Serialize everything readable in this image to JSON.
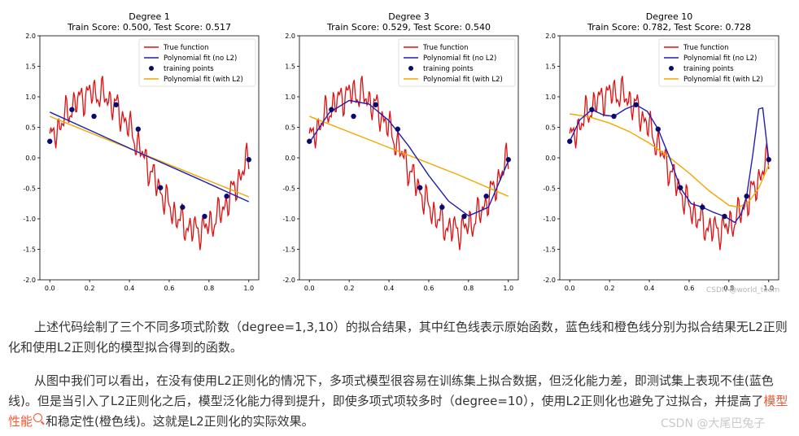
{
  "chart_data": [
    {
      "type": "line",
      "title": "Degree 1",
      "subtitle": "Train Score: 0.500, Test Score: 0.517",
      "xlim": [
        -0.05,
        1.05
      ],
      "ylim": [
        -2.0,
        2.0
      ],
      "xticks": [
        "0.0",
        "0.2",
        "0.4",
        "0.6",
        "0.8",
        "1.0"
      ],
      "yticks": [
        "-2.0",
        "-1.5",
        "-1.0",
        "-0.5",
        "0.0",
        "0.5",
        "1.0",
        "1.5",
        "2.0"
      ],
      "legend": [
        "True function",
        "Polynomial fit (no L2)",
        "training points",
        "Polynomial fit (with L2)"
      ],
      "legend_position": "top-right",
      "training_points": {
        "x": [
          0.0,
          0.111,
          0.222,
          0.333,
          0.444,
          0.556,
          0.667,
          0.778,
          0.889,
          1.0
        ],
        "y": [
          0.27,
          0.79,
          0.68,
          0.87,
          0.47,
          -0.49,
          -0.81,
          -0.96,
          -0.63,
          -0.03
        ]
      },
      "fit_no_l2": {
        "x": [
          0.0,
          0.25,
          0.5,
          0.75,
          1.0
        ],
        "y": [
          0.75,
          0.38,
          0.01,
          -0.35,
          -0.72
        ]
      },
      "fit_with_l2": {
        "x": [
          0.0,
          0.25,
          0.5,
          0.75,
          1.0
        ],
        "y": [
          0.68,
          0.35,
          0.02,
          -0.31,
          -0.64
        ]
      }
    },
    {
      "type": "line",
      "title": "Degree 3",
      "subtitle": "Train Score: 0.529, Test Score: 0.540",
      "xlim": [
        -0.05,
        1.05
      ],
      "ylim": [
        -2.0,
        2.0
      ],
      "xticks": [
        "0.0",
        "0.2",
        "0.4",
        "0.6",
        "0.8",
        "1.0"
      ],
      "yticks": [
        "-2.0",
        "-1.5",
        "-1.0",
        "-0.5",
        "0.0",
        "0.5",
        "1.0",
        "1.5",
        "2.0"
      ],
      "legend": [
        "True function",
        "Polynomial fit (no L2)",
        "training points",
        "Polynomial fit (with L2)"
      ],
      "legend_position": "top-right",
      "training_points": {
        "x": [
          0.0,
          0.111,
          0.222,
          0.333,
          0.444,
          0.556,
          0.667,
          0.778,
          0.889,
          1.0
        ],
        "y": [
          0.27,
          0.79,
          0.68,
          0.87,
          0.47,
          -0.49,
          -0.81,
          -0.96,
          -0.63,
          -0.03
        ]
      },
      "fit_no_l2": {
        "x": [
          0.0,
          0.1,
          0.2,
          0.3,
          0.4,
          0.5,
          0.6,
          0.7,
          0.8,
          0.9,
          1.0
        ],
        "y": [
          0.25,
          0.74,
          0.94,
          0.88,
          0.61,
          0.19,
          -0.29,
          -0.71,
          -0.95,
          -0.81,
          -0.05
        ]
      },
      "fit_with_l2": {
        "x": [
          0.0,
          0.25,
          0.5,
          0.75,
          1.0
        ],
        "y": [
          0.68,
          0.36,
          0.04,
          -0.28,
          -0.63
        ]
      }
    },
    {
      "type": "line",
      "title": "Degree 10",
      "subtitle": "Train Score: 0.782, Test Score: 0.728",
      "xlim": [
        -0.05,
        1.05
      ],
      "ylim": [
        -2.0,
        2.0
      ],
      "xticks": [
        "0.0",
        "0.2",
        "0.4",
        "0.6",
        "0.8",
        "1.0"
      ],
      "yticks": [
        "-2.0",
        "-1.5",
        "-1.0",
        "-0.5",
        "0.0",
        "0.5",
        "1.0",
        "1.5",
        "2.0"
      ],
      "legend": [
        "True function",
        "Polynomial fit (no L2)",
        "training points",
        "Polynomial fit (with L2)"
      ],
      "legend_position": "top-right",
      "training_points": {
        "x": [
          0.0,
          0.111,
          0.222,
          0.333,
          0.444,
          0.556,
          0.667,
          0.778,
          0.889,
          1.0
        ],
        "y": [
          0.27,
          0.79,
          0.68,
          0.87,
          0.47,
          -0.49,
          -0.81,
          -0.96,
          -0.63,
          -0.03
        ]
      },
      "fit_no_l2": {
        "x": [
          0.0,
          0.05,
          0.111,
          0.17,
          0.222,
          0.28,
          0.333,
          0.39,
          0.444,
          0.5,
          0.556,
          0.61,
          0.667,
          0.72,
          0.778,
          0.83,
          0.86,
          0.889,
          0.92,
          0.95,
          0.97,
          1.0
        ],
        "y": [
          0.27,
          0.62,
          0.79,
          0.7,
          0.68,
          0.8,
          0.87,
          0.76,
          0.47,
          0.02,
          -0.49,
          -0.75,
          -0.81,
          -0.89,
          -0.96,
          -1.06,
          -0.93,
          -0.63,
          0.05,
          0.8,
          0.82,
          -0.03
        ]
      },
      "fit_with_l2": {
        "x": [
          0.0,
          0.1,
          0.2,
          0.3,
          0.4,
          0.5,
          0.6,
          0.7,
          0.8,
          0.85,
          0.9,
          0.95,
          1.0
        ],
        "y": [
          0.72,
          0.67,
          0.57,
          0.43,
          0.24,
          0.01,
          -0.25,
          -0.54,
          -0.78,
          -0.81,
          -0.72,
          -0.5,
          -0.12
        ]
      }
    }
  ],
  "figure_watermark": "CSDN @world_team",
  "paragraph1": "上述代码绘制了三个不同多项式阶数（degree=1,3,10）的拟合结果，其中红色线表示原始函数，蓝色线和橙色线分别为拟合结果无L2正则化和使用L2正则化的模型拟合得到的函数。",
  "paragraph2_part1": "从图中我们可以看出，在没有使用L2正则化的情况下，多项式模型很容易在训练集上拟合数据，但泛化能力差，即测试集上表现不佳(蓝色线)。但是当引入了L2正则化之后，模型泛化能力得到提升，即使多项式项较多时（degree=10），使用L2正则化也避免了过拟合，并提高了",
  "paragraph2_link": "模型性能",
  "paragraph2_part2": "和稳定性(橙色线)。这就是L2正则化的实际效果。",
  "page_watermark": "CSDN @大尾巴兔子",
  "colors": {
    "true_function": "#dd1111",
    "fit_no_l2": "#1f1fb4",
    "fit_with_l2": "#f0a800",
    "points": "#0a0a6e",
    "link": "#fc5531"
  }
}
